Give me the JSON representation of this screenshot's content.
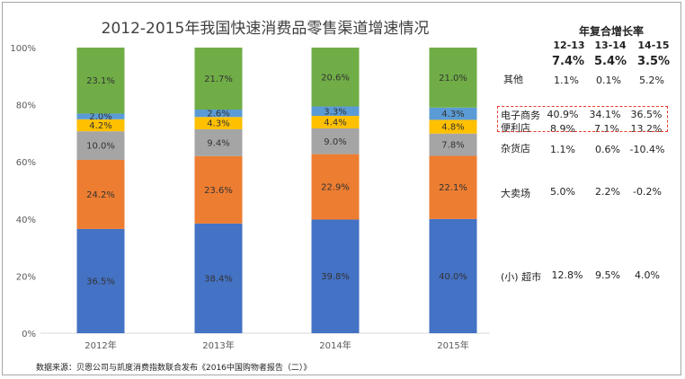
{
  "chart_data": {
    "type": "bar",
    "stacked": true,
    "title": "2012-2015年我国快速消费品零售渠道增速情况",
    "categories": [
      "2012年",
      "2013年",
      "2014年",
      "2015年"
    ],
    "ylim": [
      0,
      100
    ],
    "yticks": [
      "0%",
      "20%",
      "40%",
      "60%",
      "80%",
      "100%"
    ],
    "series": [
      {
        "name": "(小) 超市",
        "color": "#4472c4",
        "values": [
          36.5,
          38.4,
          39.8,
          40.0
        ],
        "labels": [
          "36.5%",
          "38.4%",
          "39.8%",
          "40.0%"
        ]
      },
      {
        "name": "大卖场",
        "color": "#ed7d31",
        "values": [
          24.2,
          23.6,
          22.9,
          22.1
        ],
        "labels": [
          "24.2%",
          "23.6%",
          "22.9%",
          "22.1%"
        ]
      },
      {
        "name": "杂货店",
        "color": "#a5a5a5",
        "values": [
          10.0,
          9.4,
          9.0,
          7.8
        ],
        "labels": [
          "10.0%",
          "9.4%",
          "9.0%",
          "7.8%"
        ]
      },
      {
        "name": "便利店",
        "color": "#ffc000",
        "values": [
          4.2,
          4.3,
          4.4,
          4.8
        ],
        "labels": [
          "4.2%",
          "4.3%",
          "4.4%",
          "4.8%"
        ]
      },
      {
        "name": "电子商务",
        "color": "#5b9bd5",
        "values": [
          2.0,
          2.6,
          3.3,
          4.3
        ],
        "labels": [
          "2.0%",
          "2.6%",
          "3.3%",
          "4.3%"
        ]
      },
      {
        "name": "其他",
        "color": "#70ad47",
        "values": [
          23.1,
          21.7,
          20.6,
          21.0
        ],
        "labels": [
          "23.1%",
          "21.7%",
          "20.6%",
          "21.0%"
        ]
      }
    ]
  },
  "cagr_table": {
    "heading": "年复合增长率",
    "periods": [
      "12-13",
      "13-14",
      "14-15"
    ],
    "totals": [
      "7.4%",
      "5.4%",
      "3.5%"
    ],
    "rows": [
      {
        "label": "其他",
        "values": [
          "1.1%",
          "0.1%",
          "5.2%"
        ]
      },
      {
        "label": "电子商务",
        "values": [
          "40.9%",
          "34.1%",
          "36.5%"
        ]
      },
      {
        "label": "便利店",
        "values": [
          "8.9%",
          "7.1%",
          "13.2%"
        ]
      },
      {
        "label": "杂货店",
        "values": [
          "1.1%",
          "0.6%",
          "-10.4%"
        ]
      },
      {
        "label": "大卖场",
        "values": [
          "5.0%",
          "2.2%",
          "-0.2%"
        ]
      },
      {
        "label": "(小) 超市",
        "values": [
          "12.8%",
          "9.5%",
          "4.0%"
        ]
      }
    ]
  },
  "source": "数据来源：贝恩公司与凯度消费指数联合发布《2016中国购物者报告（二）》"
}
